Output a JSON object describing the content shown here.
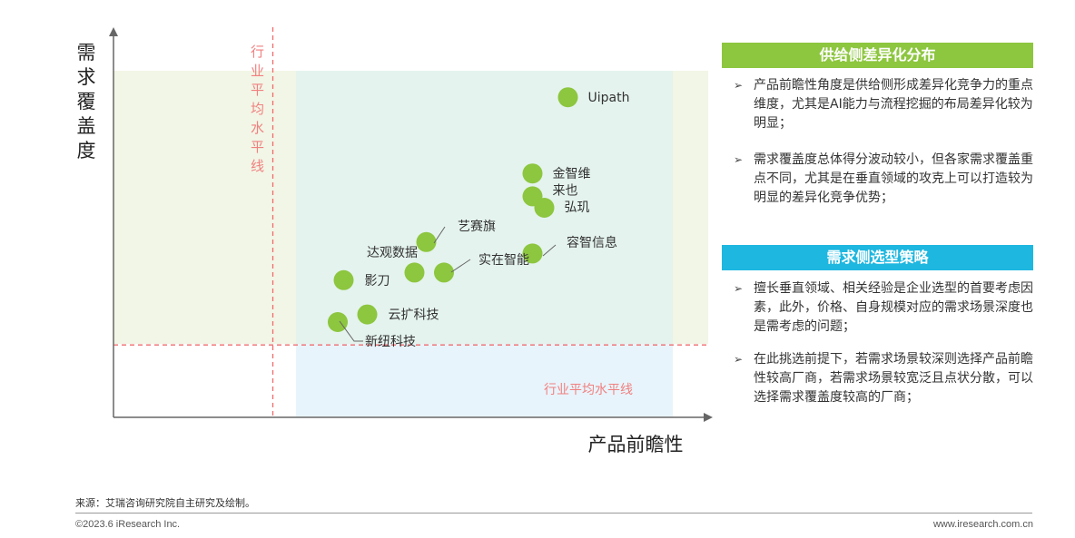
{
  "chart_data": {
    "type": "scatter",
    "ylabel": "需求覆盖度",
    "xlabel": "产品前瞻性",
    "x_avg_label": "行业平均水平线",
    "y_avg_label": "行业平均水平线",
    "xlim": [
      0,
      100
    ],
    "ylim": [
      0,
      100
    ],
    "x_avg": 27,
    "y_avg": 19,
    "points": [
      {
        "name": "Uipath",
        "x": 77,
        "y": 84
      },
      {
        "name": "金智维",
        "x": 71,
        "y": 64
      },
      {
        "name": "来也",
        "x": 71,
        "y": 58
      },
      {
        "name": "弘玑",
        "x": 73,
        "y": 55
      },
      {
        "name": "艺赛旗",
        "x": 53,
        "y": 46
      },
      {
        "name": "容智信息",
        "x": 71,
        "y": 43
      },
      {
        "name": "达观数据",
        "x": 51,
        "y": 38
      },
      {
        "name": "实在智能",
        "x": 56,
        "y": 38
      },
      {
        "name": "影刀",
        "x": 39,
        "y": 36
      },
      {
        "name": "云扩科技",
        "x": 43,
        "y": 27
      },
      {
        "name": "新纽科技",
        "x": 38,
        "y": 25
      }
    ],
    "colors": {
      "point": "#8dc63f",
      "avg_line": "#ef6b6b",
      "quad_green": "#f2f6e6",
      "quad_teal": "#e4f3ee",
      "quad_blue": "#e8f4fb",
      "axis": "#666666"
    }
  },
  "panel": {
    "supply_title": "供给侧差异化分布",
    "supply_color": "#8dc63f",
    "supply_bullets": [
      "产品前瞻性角度是供给侧形成差异化竞争力的重点维度，尤其是AI能力与流程挖掘的布局差异化较为明显；",
      "需求覆盖度总体得分波动较小，但各家需求覆盖重点不同，尤其是在垂直领域的攻克上可以打造较为明显的差异化竞争优势；"
    ],
    "demand_title": "需求侧选型策略",
    "demand_color": "#1eb7e0",
    "demand_bullets": [
      "擅长垂直领域、相关经验是企业选型的首要考虑因素，此外，价格、自身规模对应的需求场景深度也是需考虑的问题；",
      "在此挑选前提下，若需求场景较深则选择产品前瞻性较高厂商，若需求场景较宽泛且点状分散，可以选择需求覆盖度较高的厂商；"
    ]
  },
  "footer": {
    "source": "来源：艾瑞咨询研究院自主研究及绘制。",
    "copyright": "©2023.6 iResearch Inc.",
    "website": "www.iresearch.com.cn"
  }
}
